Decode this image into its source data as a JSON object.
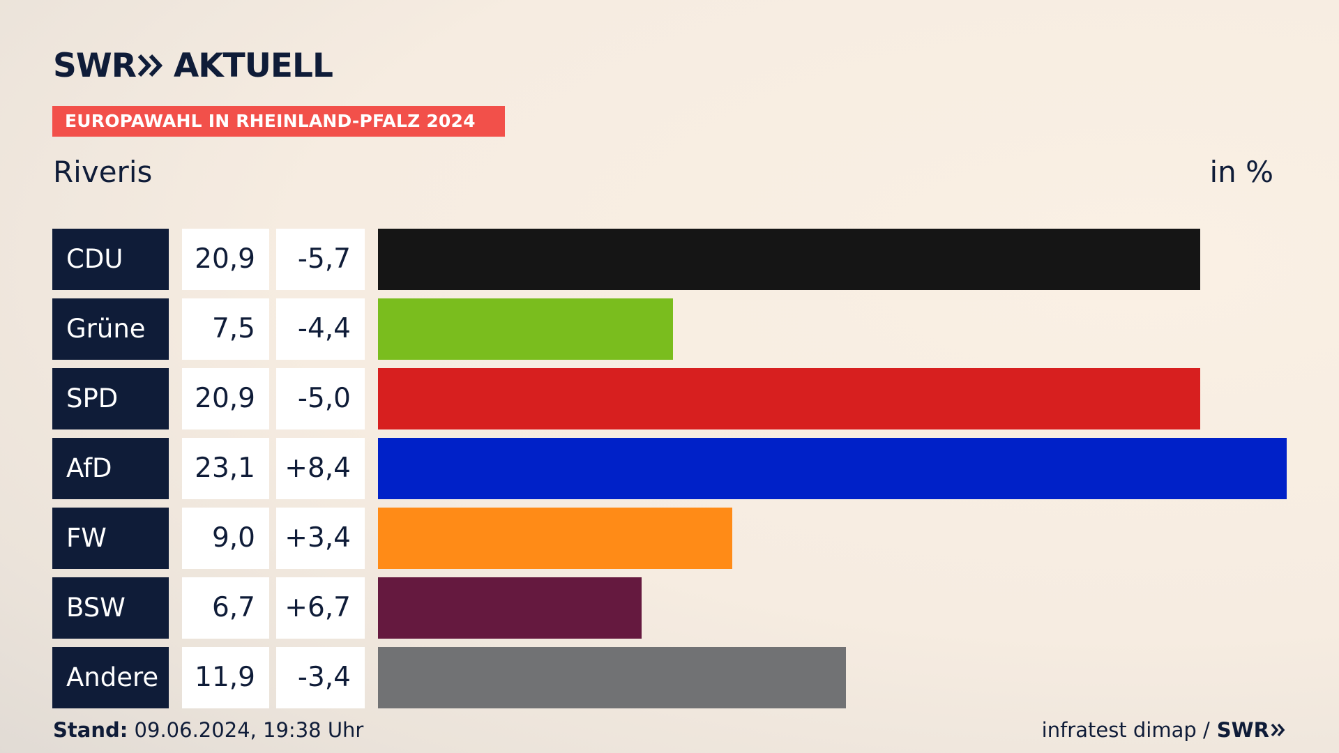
{
  "brand": {
    "logo_text": "SWR",
    "logo_suffix": "AKTUELL",
    "accent": "#f2504a",
    "navy": "#0f1c38"
  },
  "banner": {
    "label": "EUROPAWAHL IN RHEINLAND-PFALZ 2024"
  },
  "subtitle": "Riveris",
  "unit": "in %",
  "chart_data": {
    "type": "bar",
    "orientation": "horizontal",
    "title": "EUROPAWAHL IN RHEINLAND-PFALZ 2024",
    "subtitle": "Riveris",
    "unit": "in %",
    "categories": [
      "CDU",
      "Grüne",
      "SPD",
      "AfD",
      "FW",
      "BSW",
      "Andere"
    ],
    "values": [
      20.9,
      7.5,
      20.9,
      23.1,
      9.0,
      6.7,
      11.9
    ],
    "value_labels": [
      "20,9",
      "7,5",
      "20,9",
      "23,1",
      "9,0",
      "6,7",
      "11,9"
    ],
    "change_labels": [
      "-5,7",
      "-4,4",
      "-5,0",
      "+8,4",
      "+3,4",
      "+6,7",
      "-3,4"
    ],
    "colors": [
      "#151515",
      "#7abd1e",
      "#d71f1f",
      "#0021c8",
      "#ff8b17",
      "#65193f",
      "#717274"
    ],
    "xlim": [
      0,
      23.1
    ],
    "grid": false,
    "legend": "none"
  },
  "footer": {
    "stand_label": "Stand:",
    "stand_value": "09.06.2024, 19:38 Uhr",
    "source": "infratest dimap /",
    "source_logo": "SWR"
  }
}
